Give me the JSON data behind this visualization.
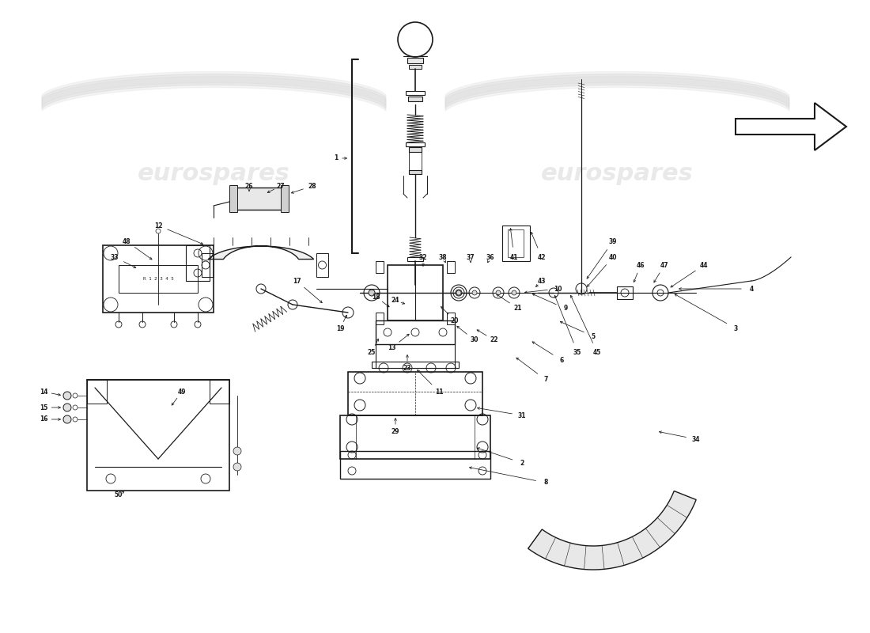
{
  "bg_color": "#ffffff",
  "watermark_color": "#d8d8d8",
  "line_color": "#1a1a1a",
  "fig_width": 11.0,
  "fig_height": 8.0,
  "xlim": [
    0,
    110
  ],
  "ylim": [
    0,
    80
  ],
  "wm_left_x": 27,
  "wm_left_y": 58,
  "wm_right_x": 78,
  "wm_right_y": 58,
  "wm_fontsize": 22,
  "wm_alpha": 0.55
}
